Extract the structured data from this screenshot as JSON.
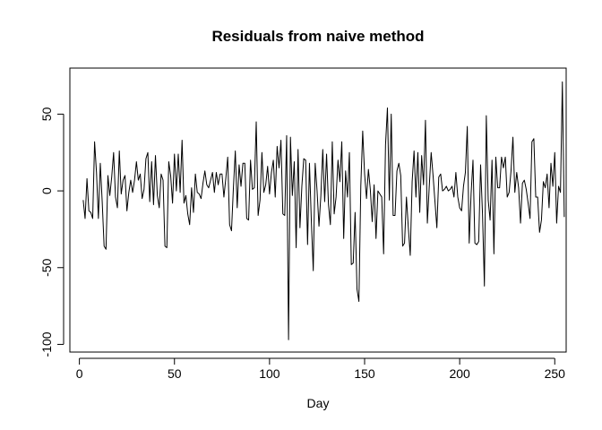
{
  "chart_data": {
    "type": "line",
    "title": "Residuals from naive method",
    "xlabel": "Day",
    "ylabel": "",
    "xlim": [
      -5,
      256
    ],
    "ylim": [
      -105,
      80
    ],
    "xticks": [
      0,
      50,
      100,
      150,
      200,
      250
    ],
    "yticks": [
      -100,
      -50,
      0,
      50
    ],
    "grid": false,
    "series": [
      {
        "name": "residuals",
        "x_start": 2,
        "values": [
          -6,
          -18,
          8,
          -13,
          -14,
          -18,
          32,
          12,
          -18,
          18,
          -7,
          -36,
          -38,
          10,
          -3,
          9,
          25,
          -4,
          -11,
          26,
          -2,
          7,
          10,
          -13,
          -1,
          7,
          -1,
          7,
          19,
          7,
          11,
          -5,
          1,
          21,
          25,
          -7,
          19,
          -9,
          23,
          -3,
          -11,
          11,
          7,
          -36,
          -37,
          19,
          10,
          -8,
          24,
          0,
          24,
          -1,
          33,
          -8,
          -3,
          -15,
          -22,
          2,
          -14,
          11,
          -1,
          -2,
          -5,
          5,
          13,
          4,
          2,
          7,
          12,
          -1,
          12,
          4,
          11,
          11,
          -4,
          8,
          22,
          -22,
          -26,
          2,
          26,
          -11,
          17,
          3,
          18,
          18,
          -18,
          -19,
          20,
          1,
          2,
          45,
          -16,
          -6,
          25,
          -1,
          4,
          16,
          -2,
          12,
          20,
          -4,
          29,
          15,
          33,
          -15,
          -16,
          36,
          -97,
          35,
          -3,
          19,
          -37,
          27,
          -24,
          3,
          21,
          20,
          -35,
          18,
          -20,
          -52,
          18,
          0,
          -23,
          -3,
          27,
          -7,
          24,
          -9,
          -22,
          32,
          -15,
          -4,
          20,
          6,
          32,
          -31,
          13,
          -4,
          25,
          -48,
          -47,
          -14,
          -64,
          -72,
          3,
          39,
          11,
          -5,
          14,
          1,
          -20,
          4,
          -31,
          0,
          -2,
          -4,
          -41,
          30,
          54,
          -6,
          50,
          -16,
          -16,
          13,
          18,
          10,
          -36,
          -34,
          -4,
          -24,
          -42,
          6,
          26,
          -4,
          25,
          -14,
          23,
          4,
          46,
          -21,
          3,
          25,
          10,
          -7,
          -24,
          9,
          11,
          0,
          1,
          3,
          0,
          1,
          3,
          -4,
          12,
          -4,
          -11,
          -13,
          3,
          12,
          42,
          -34,
          -2,
          20,
          -34,
          -35,
          -33,
          17,
          -15,
          -62,
          49,
          -6,
          -19,
          20,
          -41,
          22,
          2,
          2,
          22,
          15,
          22,
          -4,
          -1,
          13,
          35,
          -1,
          12,
          2,
          -21,
          5,
          7,
          1,
          -8,
          -18,
          32,
          34,
          -4,
          -4,
          -27,
          -19,
          6,
          2,
          11,
          -11,
          18,
          3,
          25,
          -21,
          3,
          -1,
          71,
          -17
        ]
      }
    ]
  }
}
